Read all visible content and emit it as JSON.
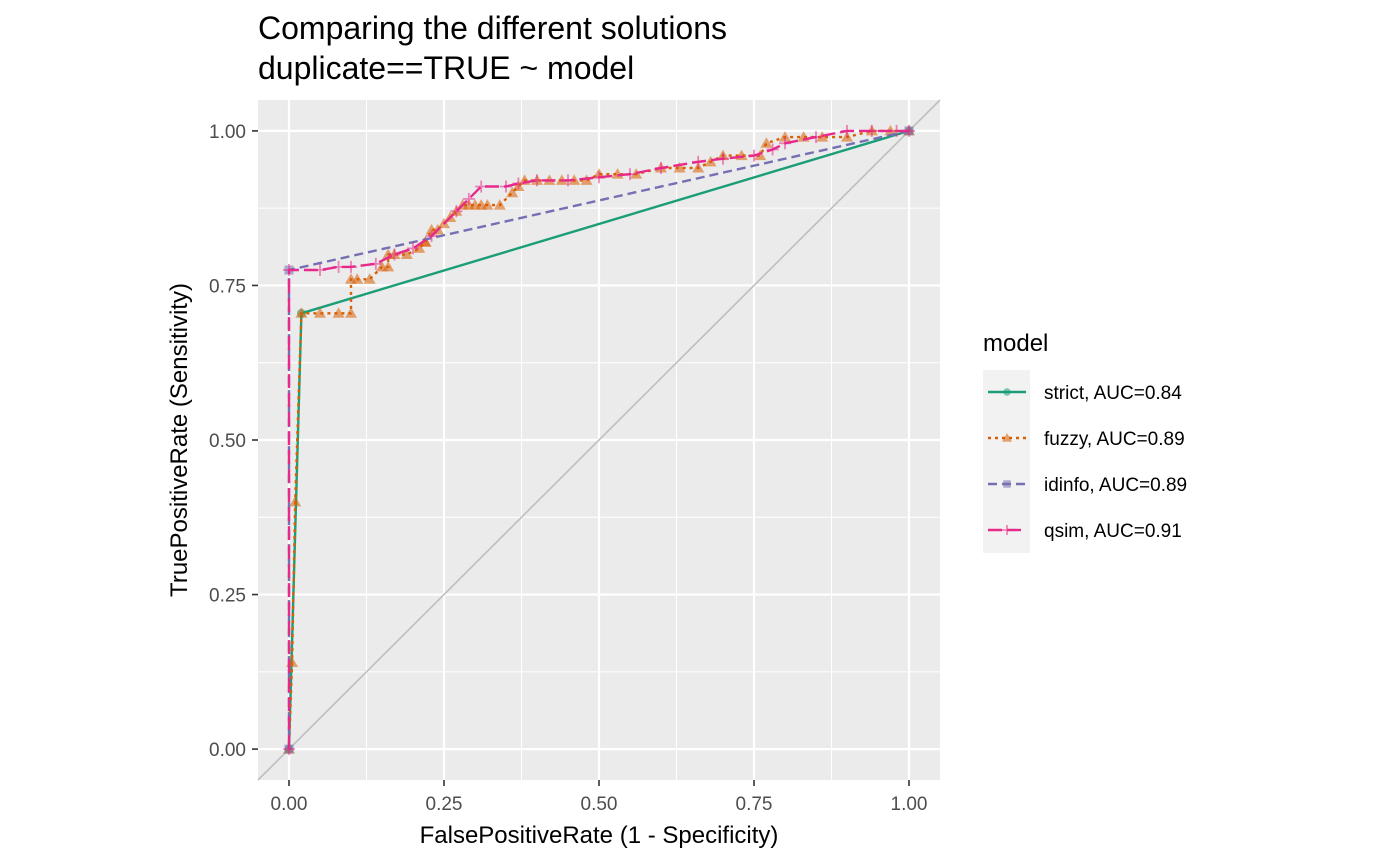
{
  "chart_data": {
    "type": "line",
    "title": "Comparing the different solutions",
    "subtitle": "duplicate==TRUE ~ model",
    "xlabel": "FalsePositiveRate (1 - Specificity)",
    "ylabel": "TruePositiveRate (Sensitivity)",
    "xlim": [
      -0.05,
      1.05
    ],
    "ylim": [
      -0.05,
      1.05
    ],
    "x_ticks": [
      "0.00",
      "0.25",
      "0.50",
      "0.75",
      "1.00"
    ],
    "y_ticks": [
      "0.00",
      "0.25",
      "0.50",
      "0.75",
      "1.00"
    ],
    "grid": true,
    "reference_line": {
      "x": [
        -0.05,
        1.05
      ],
      "y": [
        -0.05,
        1.05
      ],
      "color": "#bebebe"
    },
    "legend": {
      "title": "model",
      "position": "right"
    },
    "series": [
      {
        "name": "strict, AUC=0.84",
        "color": "#1b9e77",
        "dash": "solid",
        "marker": "circle",
        "x": [
          0,
          0.02,
          1
        ],
        "y": [
          0,
          0.705,
          1
        ]
      },
      {
        "name": "fuzzy, AUC=0.89",
        "color": "#d95f02",
        "dash": "dotted",
        "marker": "triangle",
        "x": [
          0,
          0.005,
          0.01,
          0.02,
          0.05,
          0.08,
          0.1,
          0.1,
          0.11,
          0.13,
          0.15,
          0.16,
          0.16,
          0.17,
          0.19,
          0.21,
          0.22,
          0.22,
          0.23,
          0.24,
          0.25,
          0.26,
          0.27,
          0.28,
          0.29,
          0.3,
          0.31,
          0.32,
          0.34,
          0.36,
          0.37,
          0.38,
          0.4,
          0.42,
          0.44,
          0.46,
          0.48,
          0.5,
          0.53,
          0.56,
          0.6,
          0.63,
          0.66,
          0.68,
          0.7,
          0.73,
          0.76,
          0.77,
          0.8,
          0.83,
          0.86,
          0.9,
          0.94,
          0.97,
          1
        ],
        "y": [
          0,
          0.14,
          0.4,
          0.705,
          0.705,
          0.705,
          0.705,
          0.76,
          0.76,
          0.76,
          0.78,
          0.78,
          0.8,
          0.8,
          0.8,
          0.81,
          0.82,
          0.82,
          0.84,
          0.84,
          0.85,
          0.86,
          0.87,
          0.88,
          0.88,
          0.88,
          0.88,
          0.88,
          0.88,
          0.9,
          0.91,
          0.92,
          0.92,
          0.92,
          0.92,
          0.92,
          0.92,
          0.93,
          0.93,
          0.93,
          0.94,
          0.94,
          0.94,
          0.95,
          0.96,
          0.96,
          0.96,
          0.98,
          0.99,
          0.99,
          0.99,
          0.99,
          1,
          1,
          1
        ]
      },
      {
        "name": "idinfo, AUC=0.89",
        "color": "#7570b3",
        "dash": "dashed",
        "marker": "square",
        "x": [
          0,
          0,
          1
        ],
        "y": [
          0,
          0.775,
          1
        ]
      },
      {
        "name": "qsim, AUC=0.91",
        "color": "#e7298a",
        "dash": "longdash",
        "marker": "plus",
        "x": [
          0,
          0,
          0.05,
          0.08,
          0.1,
          0.14,
          0.17,
          0.2,
          0.23,
          0.27,
          0.29,
          0.31,
          0.35,
          0.37,
          0.4,
          0.45,
          0.5,
          0.55,
          0.6,
          0.66,
          0.7,
          0.75,
          0.78,
          0.8,
          0.85,
          0.9,
          0.94,
          0.98,
          1
        ],
        "y": [
          0,
          0.775,
          0.775,
          0.78,
          0.78,
          0.785,
          0.8,
          0.81,
          0.83,
          0.87,
          0.89,
          0.91,
          0.91,
          0.915,
          0.92,
          0.92,
          0.925,
          0.93,
          0.94,
          0.95,
          0.955,
          0.96,
          0.97,
          0.98,
          0.99,
          1,
          1,
          1,
          1
        ]
      }
    ]
  }
}
